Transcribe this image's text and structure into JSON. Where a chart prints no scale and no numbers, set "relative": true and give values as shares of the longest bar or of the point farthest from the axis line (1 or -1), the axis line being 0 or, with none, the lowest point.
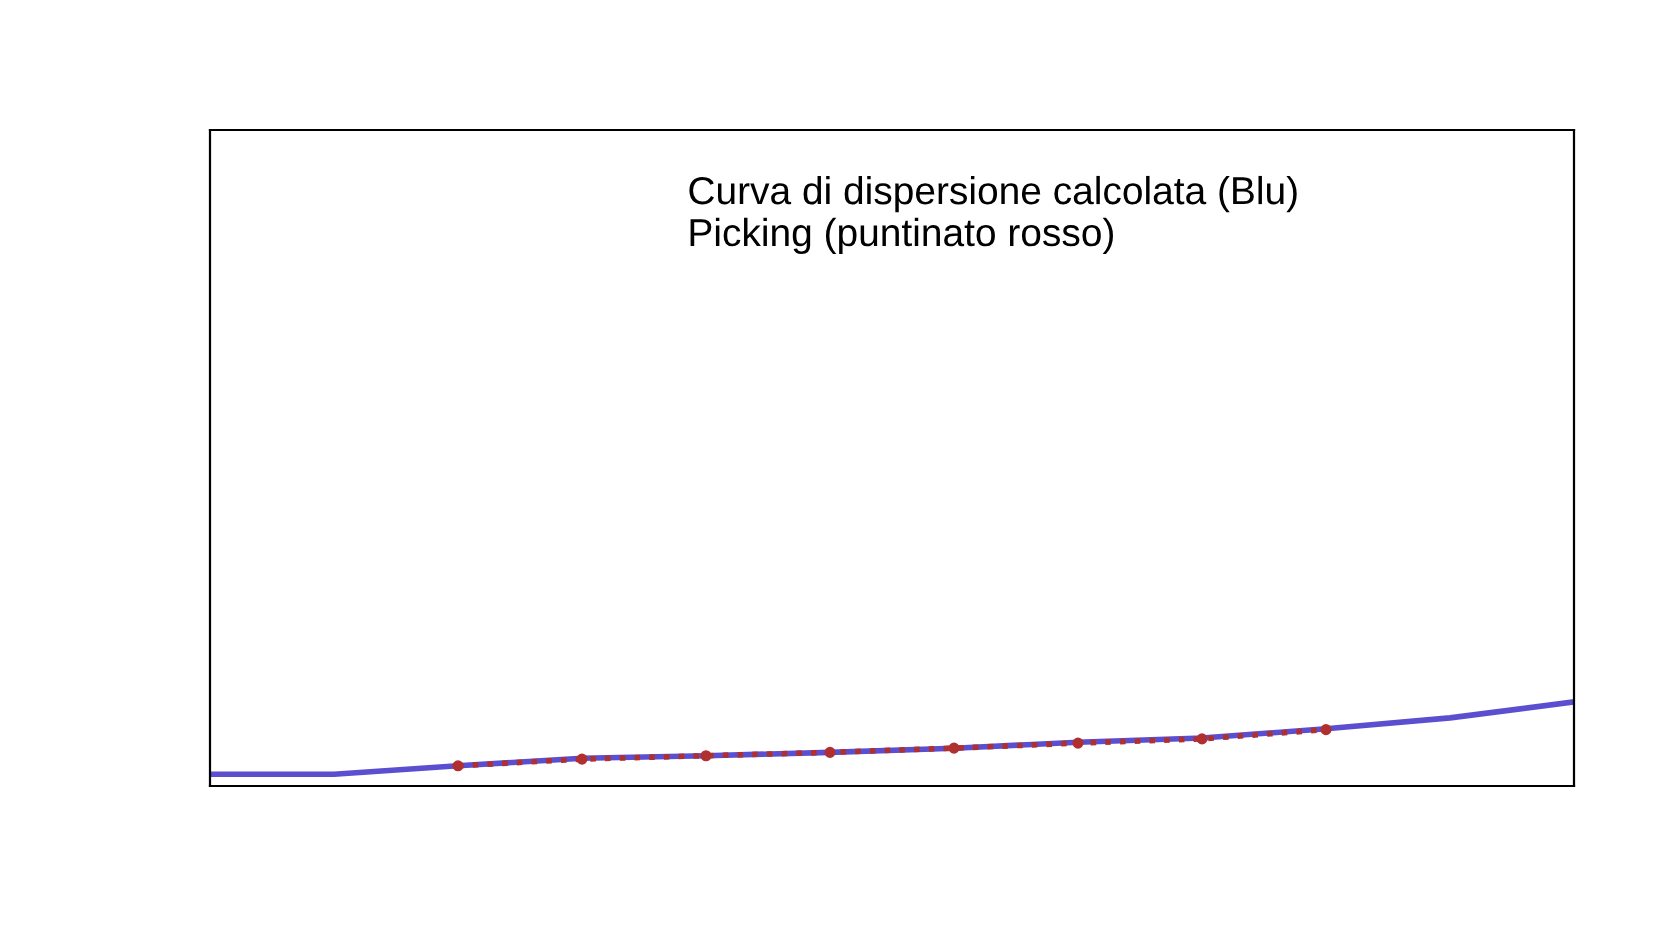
{
  "chart_data": {
    "type": "line",
    "relative": true,
    "annotations": [
      "Curva di dispersione calcolata (Blu)\nPicking (puntinato rosso)"
    ],
    "categories": [
      null,
      null,
      null,
      null,
      null,
      null,
      null,
      null,
      null,
      null,
      null,
      null
    ],
    "series": [
      {
        "color": "#5b4fd0",
        "values": [
          0.14,
          0.14,
          0.24,
          0.33,
          0.36,
          0.4,
          0.45,
          0.52,
          0.57,
          0.68,
          0.81,
          1.0
        ]
      },
      {
        "type": "line",
        "color": "#b03030",
        "line_style": "dotted",
        "marker": "circle",
        "values": [
          null,
          null,
          0.24,
          0.32,
          0.36,
          0.4,
          0.45,
          0.51,
          0.56,
          0.67,
          null,
          null
        ]
      }
    ],
    "legend": false
  }
}
